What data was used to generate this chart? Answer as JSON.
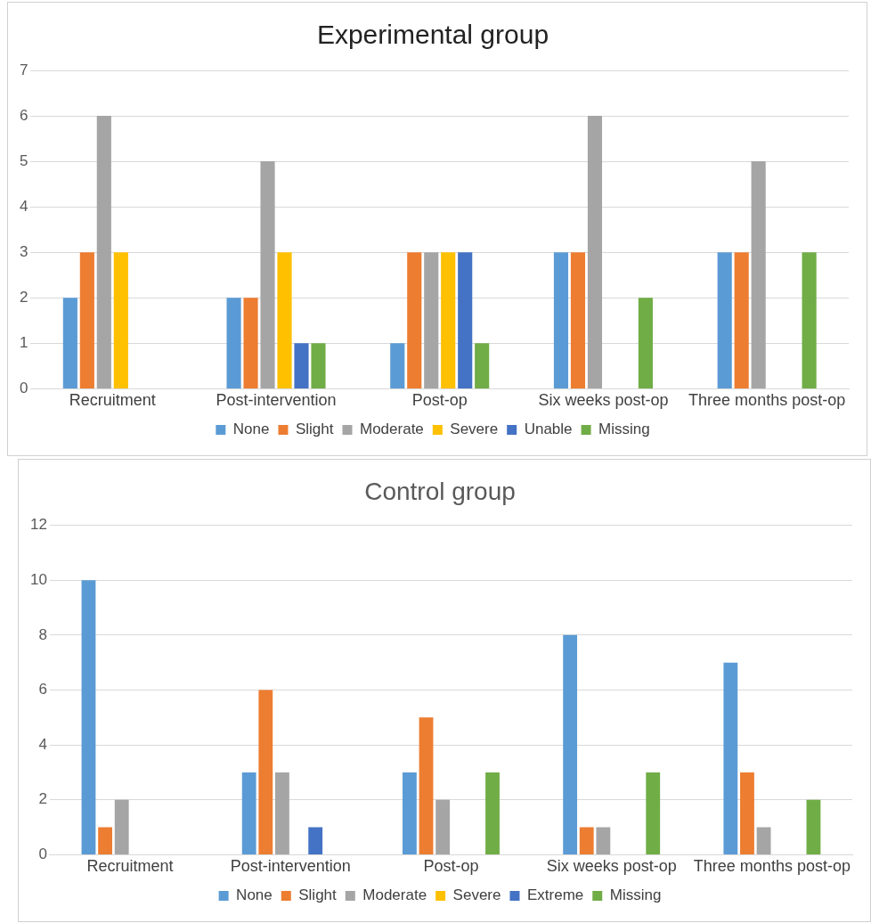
{
  "chart_data": [
    {
      "type": "bar",
      "title": "Experimental group",
      "categories": [
        "Recruitment",
        "Post-intervention",
        "Post-op",
        "Six weeks post-op",
        "Three months post-op"
      ],
      "ylim": [
        0,
        7
      ],
      "yticks": [
        0,
        1,
        2,
        3,
        4,
        5,
        6,
        7
      ],
      "grid": "y",
      "legend": "bottom",
      "series": [
        {
          "name": "None",
          "color": "#5b9bd5",
          "values": [
            2,
            2,
            1,
            3,
            3
          ]
        },
        {
          "name": "Slight",
          "color": "#ed7d31",
          "values": [
            3,
            2,
            3,
            3,
            3
          ]
        },
        {
          "name": "Moderate",
          "color": "#a5a5a5",
          "values": [
            6,
            5,
            3,
            6,
            5
          ]
        },
        {
          "name": "Severe",
          "color": "#ffc000",
          "values": [
            3,
            3,
            3,
            0,
            0
          ]
        },
        {
          "name": "Unable",
          "color": "#4472c4",
          "values": [
            0,
            1,
            3,
            0,
            0
          ]
        },
        {
          "name": "Missing",
          "color": "#70ad47",
          "values": [
            0,
            1,
            1,
            2,
            3
          ]
        }
      ]
    },
    {
      "type": "bar",
      "title": "Control group",
      "categories": [
        "Recruitment",
        "Post-intervention",
        "Post-op",
        "Six weeks post-op",
        "Three months post-op"
      ],
      "ylim": [
        0,
        12
      ],
      "yticks": [
        0,
        2,
        4,
        6,
        8,
        10,
        12
      ],
      "grid": "y",
      "legend": "bottom",
      "series": [
        {
          "name": "None",
          "color": "#5b9bd5",
          "values": [
            10,
            3,
            3,
            8,
            7
          ]
        },
        {
          "name": "Slight",
          "color": "#ed7d31",
          "values": [
            1,
            6,
            5,
            1,
            3
          ]
        },
        {
          "name": "Moderate",
          "color": "#a5a5a5",
          "values": [
            2,
            3,
            2,
            1,
            1
          ]
        },
        {
          "name": "Severe",
          "color": "#ffc000",
          "values": [
            0,
            0,
            0,
            0,
            0
          ]
        },
        {
          "name": "Extreme",
          "color": "#4472c4",
          "values": [
            0,
            1,
            0,
            0,
            0
          ]
        },
        {
          "name": "Missing",
          "color": "#70ad47",
          "values": [
            0,
            0,
            3,
            3,
            2
          ]
        }
      ]
    }
  ]
}
